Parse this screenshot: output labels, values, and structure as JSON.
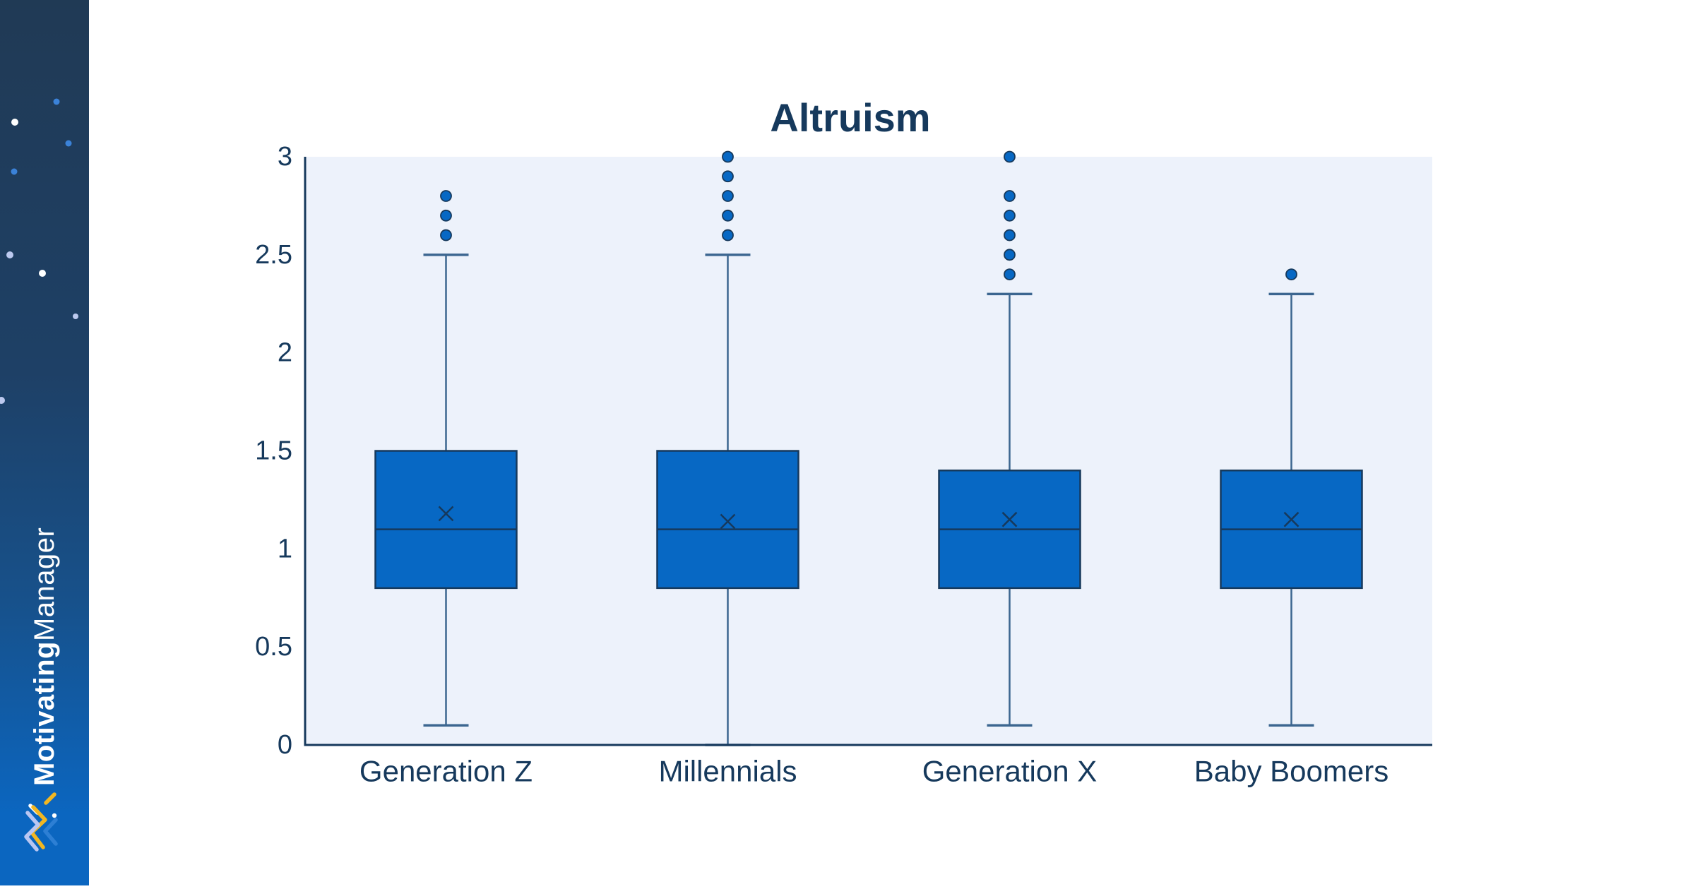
{
  "sidebar": {
    "brand": {
      "part1": "Motivating",
      "part2": "Manager"
    }
  },
  "chart_data": {
    "type": "boxplot",
    "title": "Altruism",
    "categories": [
      "Generation Z",
      "Millennials",
      "Generation X",
      "Baby Boomers"
    ],
    "series": [
      {
        "name": "Generation Z",
        "min": 0.1,
        "q1": 0.8,
        "median": 1.1,
        "q3": 1.5,
        "max": 2.5,
        "mean": 1.18,
        "outliers": [
          2.6,
          2.7,
          2.8
        ]
      },
      {
        "name": "Millennials",
        "min": 0.0,
        "q1": 0.8,
        "median": 1.1,
        "q3": 1.5,
        "max": 2.5,
        "mean": 1.14,
        "outliers": [
          2.6,
          2.7,
          2.8,
          2.9,
          3.0
        ]
      },
      {
        "name": "Generation X",
        "min": 0.1,
        "q1": 0.8,
        "median": 1.1,
        "q3": 1.4,
        "max": 2.3,
        "mean": 1.15,
        "outliers": [
          2.4,
          2.5,
          2.6,
          2.7,
          2.8,
          3.0
        ]
      },
      {
        "name": "Baby Boomers",
        "min": 0.1,
        "q1": 0.8,
        "median": 1.1,
        "q3": 1.4,
        "max": 2.3,
        "mean": 1.15,
        "outliers": [
          2.4
        ]
      }
    ],
    "ylim": [
      0,
      3
    ],
    "y_ticks": [
      0,
      0.5,
      1,
      1.5,
      2,
      2.5,
      3
    ],
    "xlabel": "",
    "ylabel": "",
    "grid": false,
    "legend": "none"
  },
  "colors": {
    "navy": "#16395c",
    "box_fill": "#0768c4",
    "whisker": "#3c6690",
    "plot_bg": "#edf2fb",
    "sidebar_top": "#203a55",
    "sidebar_bottom": "#0b66c0",
    "star_blue": "#3b82d8",
    "star_white": "#ffffff",
    "star_lavender": "#bcc9ef",
    "logo_yellow": "#f2b722",
    "logo_lavender": "#b9c6f2",
    "logo_blue": "#2d7fd4"
  }
}
